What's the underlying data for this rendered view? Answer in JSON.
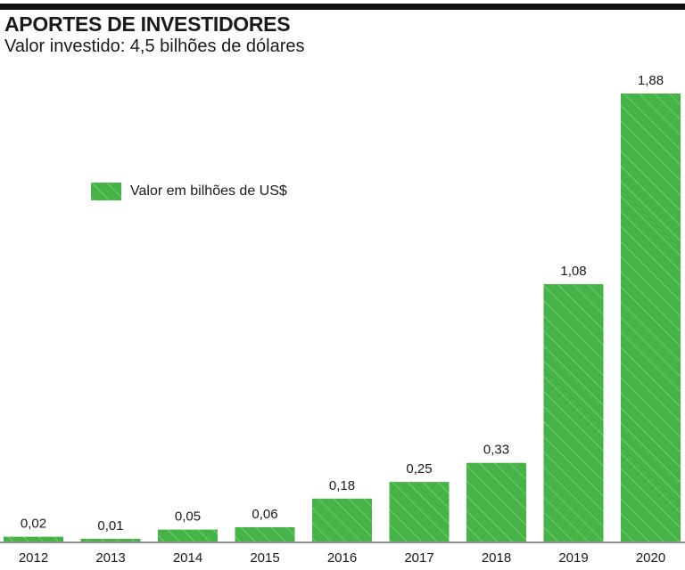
{
  "header": {
    "title": "APORTES DE INVESTIDORES",
    "subtitle": "Valor investido: 4,5 bilhões de dólares"
  },
  "colors": {
    "bar": "#46b347",
    "hatch": "#8dd68a",
    "rule": "#111111"
  },
  "chart_data": {
    "type": "bar",
    "categories": [
      "2012",
      "2013",
      "2014",
      "2015",
      "2016",
      "2017",
      "2018",
      "2019",
      "2020"
    ],
    "series": [
      {
        "name": "Valor em bilhões de US$",
        "values": [
          0.02,
          0.01,
          0.05,
          0.06,
          0.18,
          0.25,
          0.33,
          1.08,
          1.88
        ]
      }
    ],
    "data_labels": [
      "0,02",
      "0,01",
      "0,05",
      "0,06",
      "0,18",
      "0,25",
      "0,33",
      "1,08",
      "1,88"
    ],
    "title": "APORTES DE INVESTIDORES",
    "subtitle": "Valor investido: 4,5 bilhões de dólares",
    "xlabel": "",
    "ylabel": "",
    "ylim": [
      0,
      1.88
    ],
    "grid": false,
    "legend": "upper-left"
  }
}
